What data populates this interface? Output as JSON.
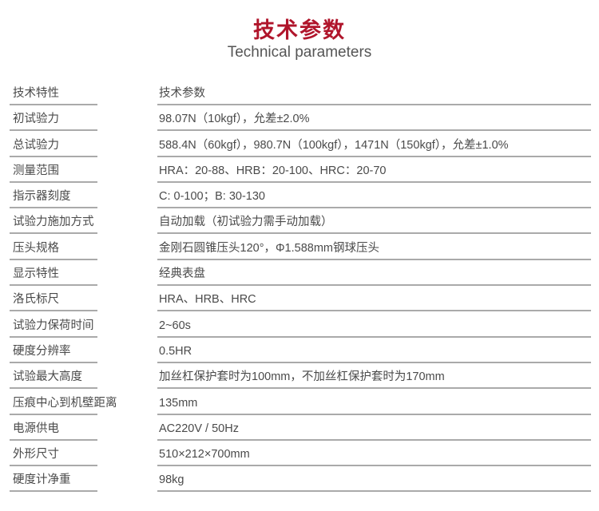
{
  "header": {
    "title": "技术参数",
    "subtitle": "Technical parameters"
  },
  "rows": [
    {
      "key": "技术特性",
      "value": "技术参数"
    },
    {
      "key": "初试验力",
      "value": "98.07N（10kgf），允差±2.0%"
    },
    {
      "key": "总试验力",
      "value": "588.4N（60kgf），980.7N（100kgf），1471N（150kgf），允差±1.0%"
    },
    {
      "key": "测量范围",
      "value": "HRA：20-88、HRB：20-100、HRC：20-70"
    },
    {
      "key": "指示器刻度",
      "value": "C: 0-100；B: 30-130"
    },
    {
      "key": "试验力施加方式",
      "value": "自动加载（初试验力需手动加载）"
    },
    {
      "key": "压头规格",
      "value": "金刚石圆锥压头120°，Φ1.588mm钢球压头"
    },
    {
      "key": "显示特性",
      "value": "经典表盘"
    },
    {
      "key": "洛氏标尺",
      "value": "HRA、HRB、HRC"
    },
    {
      "key": "试验力保荷时间",
      "value": "2~60s"
    },
    {
      "key": "硬度分辨率",
      "value": "0.5HR"
    },
    {
      "key": "试验最大高度",
      "value": "加丝杠保护套时为100mm，不加丝杠保护套时为170mm"
    },
    {
      "key": "压痕中心到机壁距离",
      "value": "135mm"
    },
    {
      "key": "电源供电",
      "value": "AC220V / 50Hz"
    },
    {
      "key": "外形尺寸",
      "value": "510×212×700mm"
    },
    {
      "key": "硬度计净重",
      "value": "98kg"
    }
  ],
  "colors": {
    "title": "#b0152b",
    "divider": "#aaaaaa"
  }
}
